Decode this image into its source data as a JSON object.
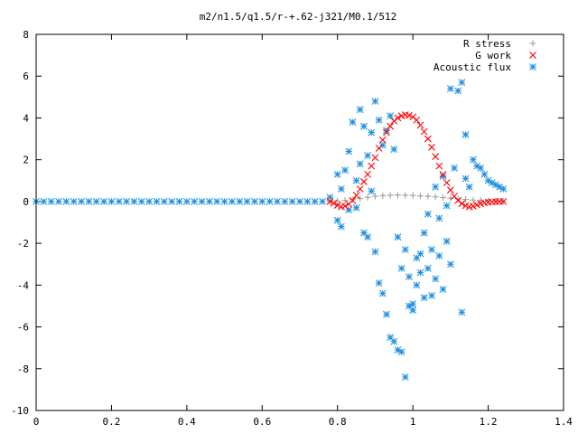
{
  "chart_data": {
    "type": "scatter",
    "title": "m2/n1.5/q1.5/r-+.62-j321/M0.1/512",
    "xlabel": "",
    "ylabel": "",
    "xlim": [
      0,
      1.4
    ],
    "ylim": [
      -10,
      8
    ],
    "x_ticks": [
      "0",
      "0.2",
      "0.4",
      "0.6",
      "0.8",
      "1",
      "1.2",
      "1.4"
    ],
    "y_ticks": [
      "-10",
      "-8",
      "-6",
      "-4",
      "-2",
      "0",
      "2",
      "4",
      "6",
      "8"
    ],
    "legend_placement": "top-right",
    "grid": false,
    "series": [
      {
        "name": "R stress",
        "marker": "plus",
        "color": "#a0a0a0",
        "x": [
          0.78,
          0.8,
          0.82,
          0.84,
          0.86,
          0.88,
          0.9,
          0.92,
          0.94,
          0.96,
          0.98,
          1.0,
          1.02,
          1.04,
          1.06,
          1.08,
          1.1,
          1.12,
          1.14,
          1.16,
          1.18,
          1.2,
          1.22,
          1.24
        ],
        "y": [
          0.0,
          0.02,
          0.05,
          0.09,
          0.14,
          0.2,
          0.25,
          0.28,
          0.3,
          0.31,
          0.3,
          0.29,
          0.27,
          0.25,
          0.22,
          0.19,
          0.16,
          0.13,
          0.1,
          0.07,
          0.05,
          0.03,
          0.02,
          0.01
        ]
      },
      {
        "name": "G work",
        "marker": "cross",
        "color": "#ff0000",
        "x": [
          0.78,
          0.79,
          0.8,
          0.81,
          0.82,
          0.83,
          0.84,
          0.85,
          0.86,
          0.87,
          0.88,
          0.89,
          0.9,
          0.91,
          0.92,
          0.93,
          0.94,
          0.95,
          0.96,
          0.97,
          0.98,
          0.99,
          1.0,
          1.01,
          1.02,
          1.03,
          1.04,
          1.05,
          1.06,
          1.07,
          1.08,
          1.09,
          1.1,
          1.11,
          1.12,
          1.13,
          1.14,
          1.15,
          1.16,
          1.17,
          1.18,
          1.19,
          1.2,
          1.21,
          1.22,
          1.23,
          1.24
        ],
        "y": [
          0.0,
          -0.08,
          -0.18,
          -0.25,
          -0.22,
          -0.12,
          0.05,
          0.3,
          0.6,
          0.95,
          1.3,
          1.7,
          2.1,
          2.55,
          2.95,
          3.3,
          3.6,
          3.85,
          4.0,
          4.1,
          4.15,
          4.12,
          4.05,
          3.9,
          3.65,
          3.35,
          3.0,
          2.6,
          2.15,
          1.7,
          1.3,
          0.9,
          0.55,
          0.25,
          0.05,
          -0.1,
          -0.2,
          -0.25,
          -0.22,
          -0.16,
          -0.1,
          -0.06,
          -0.03,
          -0.02,
          -0.01,
          0.0,
          0.0
        ]
      },
      {
        "name": "Acoustic flux",
        "marker": "star",
        "color": "#1f8fdf",
        "x": [
          0.0,
          0.02,
          0.04,
          0.06,
          0.08,
          0.1,
          0.12,
          0.14,
          0.16,
          0.18,
          0.2,
          0.22,
          0.24,
          0.26,
          0.28,
          0.3,
          0.32,
          0.34,
          0.36,
          0.38,
          0.4,
          0.42,
          0.44,
          0.46,
          0.48,
          0.5,
          0.52,
          0.54,
          0.56,
          0.58,
          0.6,
          0.62,
          0.64,
          0.66,
          0.68,
          0.7,
          0.72,
          0.74,
          0.76,
          0.78,
          0.8,
          0.8,
          0.81,
          0.81,
          0.82,
          0.83,
          0.83,
          0.84,
          0.85,
          0.85,
          0.86,
          0.86,
          0.87,
          0.87,
          0.88,
          0.88,
          0.89,
          0.89,
          0.9,
          0.9,
          0.91,
          0.91,
          0.92,
          0.92,
          0.93,
          0.93,
          0.94,
          0.94,
          0.95,
          0.95,
          0.96,
          0.96,
          0.97,
          0.97,
          0.98,
          0.98,
          0.99,
          0.99,
          1.0,
          1.0,
          1.01,
          1.01,
          1.02,
          1.02,
          1.03,
          1.03,
          1.04,
          1.04,
          1.05,
          1.05,
          1.06,
          1.06,
          1.07,
          1.07,
          1.08,
          1.08,
          1.09,
          1.09,
          1.1,
          1.1,
          1.11,
          1.12,
          1.13,
          1.13,
          1.14,
          1.14,
          1.15,
          1.16,
          1.17,
          1.18,
          1.19,
          1.2,
          1.21,
          1.22,
          1.23,
          1.24
        ],
        "y": [
          0.0,
          0.0,
          0.0,
          0.0,
          0.0,
          0.0,
          0.0,
          0.0,
          0.0,
          0.0,
          0.0,
          0.0,
          0.0,
          0.0,
          0.0,
          0.0,
          0.0,
          0.0,
          0.0,
          0.0,
          0.0,
          0.0,
          0.0,
          0.0,
          0.0,
          0.0,
          0.0,
          0.0,
          0.0,
          0.0,
          0.0,
          0.0,
          0.0,
          0.0,
          0.0,
          0.0,
          0.0,
          0.0,
          0.0,
          0.2,
          1.3,
          -0.9,
          0.6,
          -1.2,
          1.5,
          2.4,
          -0.4,
          3.8,
          1.0,
          -0.3,
          4.4,
          1.8,
          3.6,
          -1.5,
          2.2,
          -1.7,
          3.3,
          0.5,
          4.8,
          -2.4,
          3.9,
          -3.9,
          2.7,
          -4.4,
          3.4,
          -5.4,
          4.1,
          -6.5,
          2.5,
          -6.7,
          -7.1,
          -1.7,
          -7.2,
          -3.2,
          -2.3,
          -8.4,
          -3.6,
          -5.0,
          -4.9,
          -5.2,
          -2.7,
          -4.0,
          -2.5,
          -3.4,
          -1.5,
          -4.6,
          -0.6,
          -3.2,
          -2.3,
          -4.5,
          0.7,
          -3.7,
          -0.8,
          -2.6,
          1.2,
          -4.2,
          -0.2,
          -1.9,
          5.4,
          -3.0,
          1.6,
          5.3,
          5.7,
          -5.3,
          3.2,
          1.1,
          0.7,
          2.0,
          1.7,
          1.6,
          1.3,
          1.0,
          0.9,
          0.8,
          0.7,
          0.6
        ]
      }
    ]
  }
}
